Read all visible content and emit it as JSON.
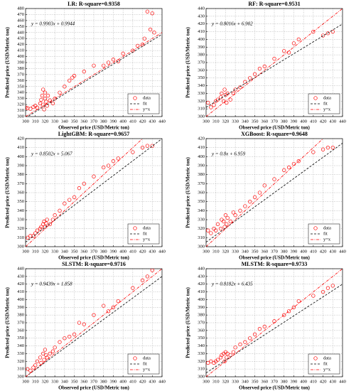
{
  "chart_data": [
    {
      "type": "scatter",
      "title": "LR: R-square=0.9358",
      "annotation": "y = 0.9903x + 0.9944",
      "x_label": "Observed price (USD/Metric ton)",
      "y_label": "Predicted price (USD/Metric ton)",
      "xlim": [
        300,
        440
      ],
      "xticks": [
        300,
        310,
        320,
        330,
        340,
        350,
        360,
        370,
        380,
        390,
        400,
        410,
        420,
        430,
        440
      ],
      "ylim": [
        300,
        480
      ],
      "yticks": [
        300,
        310,
        320,
        330,
        340,
        350,
        360,
        370,
        380,
        390,
        400,
        410,
        420,
        430,
        440,
        450,
        460,
        470,
        480
      ],
      "grid": true,
      "legend": "lower right",
      "series": [
        {
          "name": "data",
          "color": "#ff0000",
          "x": [
            300,
            302,
            305,
            308,
            310,
            312,
            315,
            316,
            317,
            318,
            318,
            319,
            320,
            320,
            321,
            322,
            323,
            325,
            328,
            330,
            335,
            340,
            345,
            348,
            350,
            360,
            370,
            380,
            385,
            390,
            395,
            400,
            410,
            415,
            420,
            422,
            425,
            428,
            430,
            432
          ],
          "values": [
            315,
            314,
            313,
            316,
            318,
            315,
            322,
            328,
            335,
            345,
            320,
            312,
            330,
            340,
            325,
            318,
            335,
            327,
            322,
            330,
            340,
            350,
            360,
            365,
            368,
            375,
            385,
            385,
            390,
            395,
            392,
            405,
            410,
            418,
            420,
            430,
            475,
            445,
            472,
            440
          ]
        },
        {
          "name": "fit",
          "color": "#000000",
          "x": [
            300,
            440
          ],
          "values": [
            298,
            437
          ]
        },
        {
          "name": "y=x",
          "color": "#ff0000"
        }
      ]
    },
    {
      "type": "scatter",
      "title": "RF: R-square=0.9531",
      "annotation": "y = 0.8016x + 6.902",
      "x_label": "Observed price (USD/Metric ton)",
      "y_label": "Predicted price (USD/Metric ton)",
      "xlim": [
        300,
        440
      ],
      "xticks": [
        300,
        310,
        320,
        330,
        340,
        350,
        360,
        370,
        380,
        390,
        400,
        410,
        420,
        430,
        440
      ],
      "ylim": [
        300,
        440
      ],
      "yticks": [
        300,
        310,
        320,
        330,
        340,
        350,
        360,
        370,
        380,
        390,
        400,
        410,
        420,
        430,
        440
      ],
      "grid": true,
      "legend": "lower right",
      "series": [
        {
          "name": "data",
          "color": "#ff0000",
          "x": [
            302,
            305,
            308,
            310,
            312,
            315,
            316,
            318,
            319,
            320,
            321,
            322,
            325,
            328,
            330,
            335,
            340,
            345,
            350,
            355,
            360,
            370,
            380,
            385,
            390,
            395,
            410,
            420,
            425,
            430
          ],
          "values": [
            318,
            312,
            315,
            320,
            322,
            325,
            330,
            320,
            335,
            328,
            318,
            330,
            322,
            330,
            335,
            338,
            345,
            350,
            355,
            362,
            365,
            375,
            385,
            383,
            395,
            400,
            410,
            405,
            408,
            410
          ]
        },
        {
          "name": "fit",
          "color": "#000000",
          "x": [
            300,
            440
          ],
          "values": [
            312,
            420
          ]
        },
        {
          "name": "y=x",
          "color": "#ff0000"
        }
      ]
    },
    {
      "type": "scatter",
      "title": "LightGBM: R-square=0.9657",
      "annotation": "y = 0.8502x + 5.067",
      "x_label": "Observed price (USD/Metric ton)",
      "y_label": "Predicted price (USD/Metric ton)",
      "xlim": [
        300,
        440
      ],
      "xticks": [
        300,
        310,
        320,
        330,
        340,
        350,
        360,
        370,
        380,
        390,
        400,
        410,
        420,
        430,
        440
      ],
      "ylim": [
        300,
        420
      ],
      "yticks": [
        300,
        310,
        320,
        330,
        340,
        350,
        360,
        370,
        380,
        390,
        400,
        410,
        420
      ],
      "grid": true,
      "legend": "lower right",
      "series": [
        {
          "name": "data",
          "color": "#ff0000",
          "x": [
            302,
            305,
            308,
            310,
            312,
            315,
            316,
            318,
            319,
            320,
            321,
            322,
            325,
            328,
            330,
            335,
            340,
            345,
            350,
            355,
            360,
            370,
            380,
            385,
            390,
            395,
            410,
            420,
            425,
            430
          ],
          "values": [
            310,
            312,
            312,
            315,
            318,
            320,
            322,
            325,
            328,
            322,
            326,
            330,
            325,
            330,
            335,
            340,
            348,
            352,
            355,
            365,
            370,
            378,
            388,
            390,
            395,
            398,
            405,
            410,
            412,
            412
          ]
        },
        {
          "name": "fit",
          "color": "#000000",
          "x": [
            300,
            440
          ],
          "values": [
            305,
            420
          ]
        },
        {
          "name": "y=x",
          "color": "#ff0000"
        }
      ]
    },
    {
      "type": "scatter",
      "title": "XGBoost: R-square=0.9648",
      "annotation": "y = 0.8x + 6.959",
      "x_label": "Observed price (USD/Metric ton)",
      "y_label": "Predicted price (USD/Metric ton)",
      "xlim": [
        300,
        440
      ],
      "xticks": [
        300,
        310,
        320,
        330,
        340,
        350,
        360,
        370,
        380,
        390,
        400,
        410,
        420,
        430,
        440
      ],
      "ylim": [
        300,
        420
      ],
      "yticks": [
        300,
        310,
        320,
        330,
        340,
        350,
        360,
        370,
        380,
        390,
        400,
        410,
        420
      ],
      "grid": true,
      "legend": "lower right",
      "series": [
        {
          "name": "data",
          "color": "#ff0000",
          "x": [
            302,
            305,
            308,
            310,
            312,
            315,
            316,
            318,
            319,
            320,
            321,
            322,
            325,
            328,
            330,
            335,
            340,
            345,
            350,
            355,
            360,
            370,
            380,
            385,
            390,
            395,
            410,
            420,
            425,
            430
          ],
          "values": [
            318,
            315,
            320,
            318,
            325,
            320,
            330,
            328,
            322,
            335,
            325,
            332,
            328,
            338,
            335,
            340,
            345,
            350,
            355,
            360,
            368,
            375,
            385,
            388,
            392,
            395,
            405,
            408,
            410,
            410
          ]
        },
        {
          "name": "fit",
          "color": "#000000",
          "x": [
            300,
            440
          ],
          "values": [
            305,
            415
          ]
        },
        {
          "name": "y=x",
          "color": "#ff0000"
        }
      ]
    },
    {
      "type": "scatter",
      "title": "SLSTM: R-square=0.9716",
      "annotation": "y = 0.9439x + 1.858",
      "x_label": "Observed price (USD/Metric ton)",
      "y_label": "Predicted price (USD/Metric ton)",
      "xlim": [
        300,
        440
      ],
      "xticks": [
        300,
        310,
        320,
        330,
        340,
        350,
        360,
        370,
        380,
        390,
        400,
        410,
        420,
        430,
        440
      ],
      "ylim": [
        300,
        440
      ],
      "yticks": [
        300,
        310,
        320,
        330,
        340,
        350,
        360,
        370,
        380,
        390,
        400,
        410,
        420,
        430,
        440
      ],
      "grid": true,
      "legend": "lower right",
      "series": [
        {
          "name": "data",
          "color": "#ff0000",
          "x": [
            302,
            305,
            308,
            310,
            312,
            315,
            316,
            318,
            319,
            320,
            321,
            322,
            325,
            328,
            330,
            335,
            340,
            345,
            350,
            355,
            360,
            370,
            380,
            385,
            390,
            395,
            410,
            420,
            425,
            430
          ],
          "values": [
            310,
            308,
            312,
            315,
            320,
            325,
            318,
            330,
            322,
            335,
            328,
            325,
            330,
            333,
            338,
            345,
            350,
            352,
            355,
            370,
            368,
            380,
            392,
            385,
            390,
            398,
            415,
            425,
            430,
            438
          ]
        },
        {
          "name": "fit",
          "color": "#000000",
          "x": [
            300,
            440
          ],
          "values": [
            300,
            430
          ]
        },
        {
          "name": "y=x",
          "color": "#ff0000"
        }
      ]
    },
    {
      "type": "scatter",
      "title": "MLSTM: R-square=0.9733",
      "annotation": "y = 0.8182x + 6.435",
      "x_label": "Observed price (USD/Metric ton)",
      "y_label": "Predicted price (USD/Metric ton)",
      "xlim": [
        300,
        440
      ],
      "xticks": [
        300,
        310,
        320,
        330,
        340,
        350,
        360,
        370,
        380,
        390,
        400,
        410,
        420,
        430,
        440
      ],
      "ylim": [
        300,
        440
      ],
      "yticks": [
        300,
        310,
        320,
        330,
        340,
        350,
        360,
        370,
        380,
        390,
        400,
        410,
        420,
        430,
        440
      ],
      "grid": true,
      "legend": "lower right",
      "series": [
        {
          "name": "data",
          "color": "#ff0000",
          "x": [
            302,
            305,
            308,
            310,
            312,
            315,
            316,
            318,
            319,
            320,
            321,
            322,
            325,
            328,
            330,
            335,
            340,
            345,
            350,
            355,
            360,
            370,
            380,
            385,
            390,
            395,
            410,
            420,
            425,
            430
          ],
          "values": [
            318,
            320,
            318,
            320,
            322,
            325,
            328,
            330,
            320,
            332,
            325,
            330,
            328,
            332,
            338,
            342,
            345,
            350,
            355,
            362,
            365,
            372,
            380,
            385,
            390,
            398,
            405,
            410,
            415,
            418
          ]
        },
        {
          "name": "fit",
          "color": "#000000",
          "x": [
            300,
            440
          ],
          "values": [
            305,
            420
          ]
        },
        {
          "name": "y=x",
          "color": "#ff0000"
        }
      ]
    }
  ]
}
